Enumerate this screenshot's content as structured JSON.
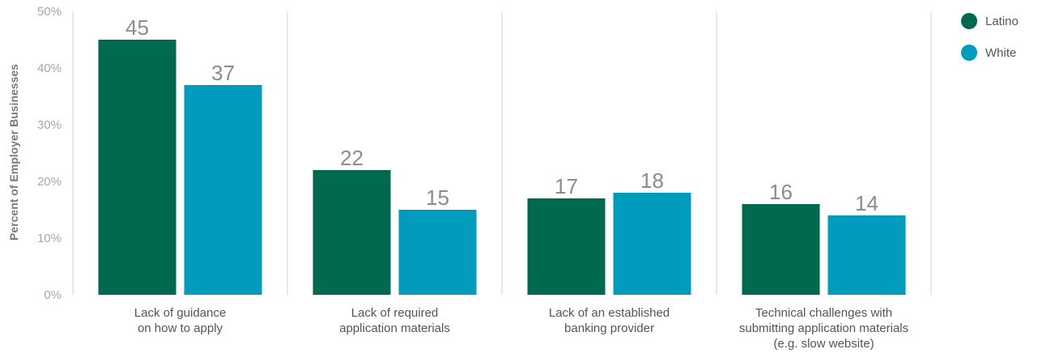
{
  "chart_data": {
    "type": "bar",
    "ylabel": "Percent of Employer Businesses",
    "ylim": [
      0,
      50
    ],
    "yticks": [
      "0%",
      "10%",
      "20%",
      "30%",
      "40%",
      "50%"
    ],
    "grid": false,
    "legend_position": "top-right",
    "categories": [
      [
        "Lack of guidance",
        "on how to apply"
      ],
      [
        "Lack of required",
        "application materials"
      ],
      [
        "Lack of an established",
        "banking provider"
      ],
      [
        "Technical challenges with",
        "submitting application materials",
        "(e.g. slow website)"
      ]
    ],
    "series": [
      {
        "name": "Latino",
        "color": "#006950",
        "values": [
          45,
          22,
          17,
          16
        ]
      },
      {
        "name": "White",
        "color": "#009bbd",
        "values": [
          37,
          15,
          18,
          14
        ]
      }
    ]
  }
}
